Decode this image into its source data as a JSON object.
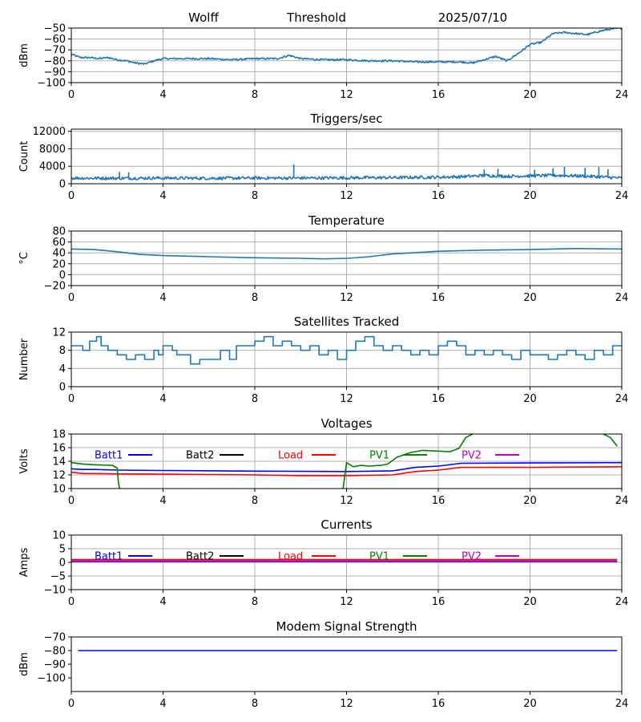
{
  "header": {
    "station": "Wolff",
    "mode": "Threshold",
    "date": "2025/07/10"
  },
  "colors": {
    "series": "#1f77b4",
    "grid": "#b0b0b0",
    "batt1": "#0000ff",
    "batt2": "#000000",
    "load": "#ff0000",
    "pv1": "#008000",
    "pv2": "#bf00bf"
  },
  "chart_data": [
    {
      "id": "threshold",
      "type": "line",
      "title": "",
      "ylabel": "dBm",
      "xlim": [
        0,
        24
      ],
      "ylim": [
        -100,
        -50
      ],
      "xticks": [
        0,
        4,
        8,
        12,
        16,
        20,
        24
      ],
      "yticks": [
        -100,
        -90,
        -80,
        -70,
        -60,
        -50
      ],
      "grid": true,
      "series": [
        {
          "color": "#1f77b4",
          "noise": 0.8,
          "x": [
            0,
            0.4,
            0.8,
            1.2,
            1.6,
            2,
            2.4,
            2.8,
            3.2,
            3.6,
            4,
            5,
            6,
            7,
            8,
            9,
            9.5,
            10,
            11,
            12,
            13,
            14,
            15,
            16,
            17,
            17.5,
            18,
            18.5,
            19,
            19.5,
            20,
            20.5,
            21,
            21.5,
            22,
            22.5,
            23,
            23.5,
            24
          ],
          "y": [
            -74,
            -77,
            -77,
            -78,
            -77,
            -79,
            -80,
            -82,
            -83,
            -80,
            -78,
            -78,
            -78,
            -79,
            -78,
            -78,
            -75,
            -78,
            -79,
            -79,
            -80,
            -80,
            -81,
            -81,
            -81,
            -82,
            -79,
            -76,
            -80,
            -73,
            -65,
            -63,
            -55,
            -54,
            -55,
            -56,
            -53,
            -51,
            -50
          ]
        }
      ]
    },
    {
      "id": "triggers",
      "type": "line",
      "title": "Triggers/sec",
      "ylabel": "Count",
      "xlim": [
        0,
        24
      ],
      "ylim": [
        0,
        12500
      ],
      "xticks": [
        0,
        4,
        8,
        12,
        16,
        20,
        24
      ],
      "yticks": [
        0,
        4000,
        8000,
        12000
      ],
      "grid": true,
      "series": [
        {
          "color": "#1f77b4",
          "noise": 350,
          "x": [
            0,
            2,
            4,
            6,
            8,
            10,
            12,
            14,
            16,
            17,
            18,
            19,
            20,
            21,
            22,
            23,
            24
          ],
          "y": [
            1300,
            1250,
            1300,
            1250,
            1300,
            1300,
            1350,
            1400,
            1500,
            1600,
            1900,
            1700,
            1800,
            1900,
            1800,
            1600,
            1300
          ]
        }
      ],
      "spikes": [
        {
          "x": 2.1,
          "y": 2700
        },
        {
          "x": 2.5,
          "y": 2600
        },
        {
          "x": 9.7,
          "y": 4400
        },
        {
          "x": 18,
          "y": 3300
        },
        {
          "x": 18.6,
          "y": 3400
        },
        {
          "x": 20.2,
          "y": 3200
        },
        {
          "x": 21.0,
          "y": 3500
        },
        {
          "x": 21.5,
          "y": 3900
        },
        {
          "x": 22.4,
          "y": 3600
        },
        {
          "x": 23.0,
          "y": 3800
        },
        {
          "x": 23.4,
          "y": 3300
        }
      ]
    },
    {
      "id": "temperature",
      "type": "line",
      "title": "Temperature",
      "ylabel": "°C",
      "xlim": [
        0,
        24
      ],
      "ylim": [
        -20,
        80
      ],
      "xticks": [
        0,
        4,
        8,
        12,
        16,
        20,
        24
      ],
      "yticks": [
        -20,
        0,
        20,
        40,
        60,
        80
      ],
      "grid": true,
      "series": [
        {
          "color": "#1f77b4",
          "noise": 0,
          "x": [
            0,
            1,
            2,
            3,
            4,
            6,
            8,
            10,
            11,
            12,
            13,
            14,
            16,
            18,
            20,
            22,
            24
          ],
          "y": [
            47,
            46,
            42,
            37,
            35,
            33,
            31,
            30,
            29,
            30,
            33,
            38,
            43,
            45,
            46,
            48,
            47
          ]
        }
      ]
    },
    {
      "id": "satellites",
      "type": "line",
      "title": "Satellites Tracked",
      "ylabel": "Number",
      "xlim": [
        0,
        24
      ],
      "ylim": [
        0,
        12
      ],
      "xticks": [
        0,
        4,
        8,
        12,
        16,
        20,
        24
      ],
      "yticks": [
        0,
        4,
        8,
        12
      ],
      "grid": true,
      "series": [
        {
          "color": "#1f77b4",
          "noise": 0,
          "step": true,
          "x": [
            0,
            0.5,
            0.8,
            1.1,
            1.3,
            1.6,
            2.0,
            2.4,
            2.8,
            3.2,
            3.6,
            3.8,
            4.0,
            4.4,
            4.6,
            5.2,
            5.6,
            6.2,
            6.5,
            6.9,
            7.2,
            7.6,
            8.0,
            8.4,
            8.8,
            9.2,
            9.6,
            10.0,
            10.4,
            10.8,
            11.2,
            11.6,
            12.0,
            12.4,
            12.8,
            13.2,
            13.6,
            14.0,
            14.4,
            14.8,
            15.2,
            15.6,
            16.0,
            16.4,
            16.8,
            17.2,
            17.6,
            18.0,
            18.4,
            18.8,
            19.2,
            19.6,
            20.0,
            20.4,
            20.8,
            21.2,
            21.6,
            22.0,
            22.4,
            22.8,
            23.2,
            23.6,
            24
          ],
          "y": [
            9,
            8,
            10,
            11,
            9,
            8,
            7,
            6,
            7,
            6,
            8,
            7,
            9,
            8,
            7,
            5,
            6,
            6,
            8,
            6,
            9,
            9,
            10,
            11,
            9,
            10,
            9,
            8,
            9,
            7,
            8,
            6,
            8,
            10,
            11,
            9,
            8,
            9,
            8,
            7,
            8,
            7,
            9,
            10,
            9,
            7,
            8,
            7,
            8,
            7,
            6,
            8,
            7,
            7,
            6,
            7,
            8,
            7,
            6,
            8,
            7,
            9,
            9
          ]
        }
      ]
    },
    {
      "id": "voltages",
      "type": "line",
      "title": "Voltages",
      "ylabel": "Volts",
      "xlim": [
        0,
        24
      ],
      "ylim": [
        10,
        18
      ],
      "xticks": [
        0,
        4,
        8,
        12,
        16,
        20,
        24
      ],
      "yticks": [
        10,
        12,
        14,
        16,
        18
      ],
      "grid": true,
      "legend": [
        {
          "label": "Batt1",
          "color": "#0000ff"
        },
        {
          "label": "Batt2",
          "color": "#000000"
        },
        {
          "label": "Load",
          "color": "#ff0000"
        },
        {
          "label": "PV1",
          "color": "#008000"
        },
        {
          "label": "PV2",
          "color": "#bf00bf"
        }
      ],
      "series": [
        {
          "name": "Batt1",
          "color": "#0000ff",
          "noise": 0,
          "x": [
            0,
            0.5,
            1,
            2,
            4,
            8,
            12,
            14,
            15,
            16,
            17,
            20,
            24
          ],
          "y": [
            12.9,
            12.8,
            12.8,
            12.7,
            12.65,
            12.55,
            12.5,
            12.6,
            13.1,
            13.3,
            13.7,
            13.75,
            13.8
          ]
        },
        {
          "name": "Load",
          "color": "#ff0000",
          "noise": 0,
          "x": [
            0,
            0.5,
            1,
            2,
            4,
            8,
            10,
            12,
            14,
            15,
            16,
            17,
            20,
            24
          ],
          "y": [
            12.4,
            12.2,
            12.2,
            12.15,
            12.1,
            12.0,
            11.9,
            11.9,
            12.0,
            12.5,
            12.7,
            13.1,
            13.1,
            13.2
          ]
        },
        {
          "name": "PV1",
          "color": "#008000",
          "noise": 0,
          "x": [
            0,
            0.5,
            1,
            1.8,
            2.0,
            2.05,
            2.1
          ],
          "y": [
            13.8,
            13.6,
            13.5,
            13.4,
            13.0,
            11.0,
            10.0
          ]
        },
        {
          "name": "PV1",
          "color": "#008000",
          "noise": 0,
          "x": [
            11.85,
            12.0,
            12.3,
            12.6,
            13.0,
            13.5,
            13.8,
            14.2,
            14.8,
            15.3,
            16.0,
            16.5,
            16.9,
            17.2,
            17.5
          ],
          "y": [
            10.0,
            13.8,
            13.2,
            13.4,
            13.3,
            13.4,
            13.6,
            14.6,
            15.3,
            15.6,
            15.5,
            15.4,
            15.9,
            17.5,
            18.0
          ]
        },
        {
          "name": "PV1",
          "color": "#008000",
          "noise": 0,
          "x": [
            23.2,
            23.5,
            23.8
          ],
          "y": [
            18.0,
            17.5,
            16.2
          ]
        }
      ]
    },
    {
      "id": "currents",
      "type": "line",
      "title": "Currents",
      "ylabel": "Amps",
      "xlim": [
        0,
        24
      ],
      "ylim": [
        -10,
        10
      ],
      "xticks": [
        0,
        4,
        8,
        12,
        16,
        20,
        24
      ],
      "yticks": [
        -10,
        -5,
        0,
        5,
        10
      ],
      "grid": true,
      "legend": [
        {
          "label": "Batt1",
          "color": "#0000ff"
        },
        {
          "label": "Batt2",
          "color": "#000000"
        },
        {
          "label": "Load",
          "color": "#ff0000"
        },
        {
          "label": "PV1",
          "color": "#008000"
        },
        {
          "label": "PV2",
          "color": "#bf00bf"
        }
      ],
      "series": [
        {
          "name": "Load",
          "color": "#ff0000",
          "noise": 0,
          "x": [
            0,
            23.8
          ],
          "y": [
            1.0,
            1.0
          ]
        },
        {
          "name": "Batt1",
          "color": "#0000ff",
          "noise": 0,
          "x": [
            0,
            23.8
          ],
          "y": [
            0.3,
            0.3
          ]
        },
        {
          "name": "PV2",
          "color": "#bf00bf",
          "noise": 0,
          "x": [
            0,
            23.8
          ],
          "y": [
            0.5,
            0.5
          ]
        }
      ]
    },
    {
      "id": "modem",
      "type": "line",
      "title": "Modem Signal Strength",
      "ylabel": "dBm",
      "xlim": [
        0,
        24
      ],
      "ylim": [
        -110,
        -70
      ],
      "xticks": [
        0,
        4,
        8,
        12,
        16,
        20,
        24
      ],
      "yticks": [
        -100,
        -90,
        -80,
        -70
      ],
      "grid": false,
      "series": [
        {
          "color": "#0000ff",
          "noise": 0,
          "x": [
            0.3,
            23.8
          ],
          "y": [
            -80,
            -80
          ]
        }
      ]
    }
  ]
}
